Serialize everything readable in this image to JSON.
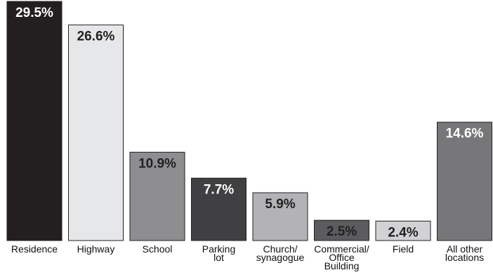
{
  "chart_data": {
    "type": "bar",
    "title": "",
    "xlabel": "",
    "ylabel": "",
    "ylim": [
      0,
      29.5
    ],
    "grid": false,
    "legend": "none",
    "categories": [
      [
        "Residence"
      ],
      [
        "Highway"
      ],
      [
        "School"
      ],
      [
        "Parking",
        "lot"
      ],
      [
        "Church/",
        "synagogue"
      ],
      [
        "Commercial/",
        "Office",
        "Building"
      ],
      [
        "Field"
      ],
      [
        "All other",
        "locations"
      ]
    ],
    "values": [
      29.5,
      26.6,
      10.9,
      7.7,
      5.9,
      2.5,
      2.4,
      14.6
    ],
    "value_labels": [
      "29.5%",
      "26.6%",
      "10.9%",
      "7.7%",
      "5.9%",
      "2.5%",
      "2.4%",
      "14.6%"
    ],
    "bar_colors": [
      "#231f20",
      "#e6e7e9",
      "#8e8e91",
      "#404042",
      "#b3b3b5",
      "#5c5c5f",
      "#d1d2d4",
      "#77777a"
    ],
    "label_colors": [
      "#ffffff",
      "#231f20",
      "#231f20",
      "#ffffff",
      "#231f20",
      "#231f20",
      "#231f20",
      "#ffffff"
    ]
  }
}
